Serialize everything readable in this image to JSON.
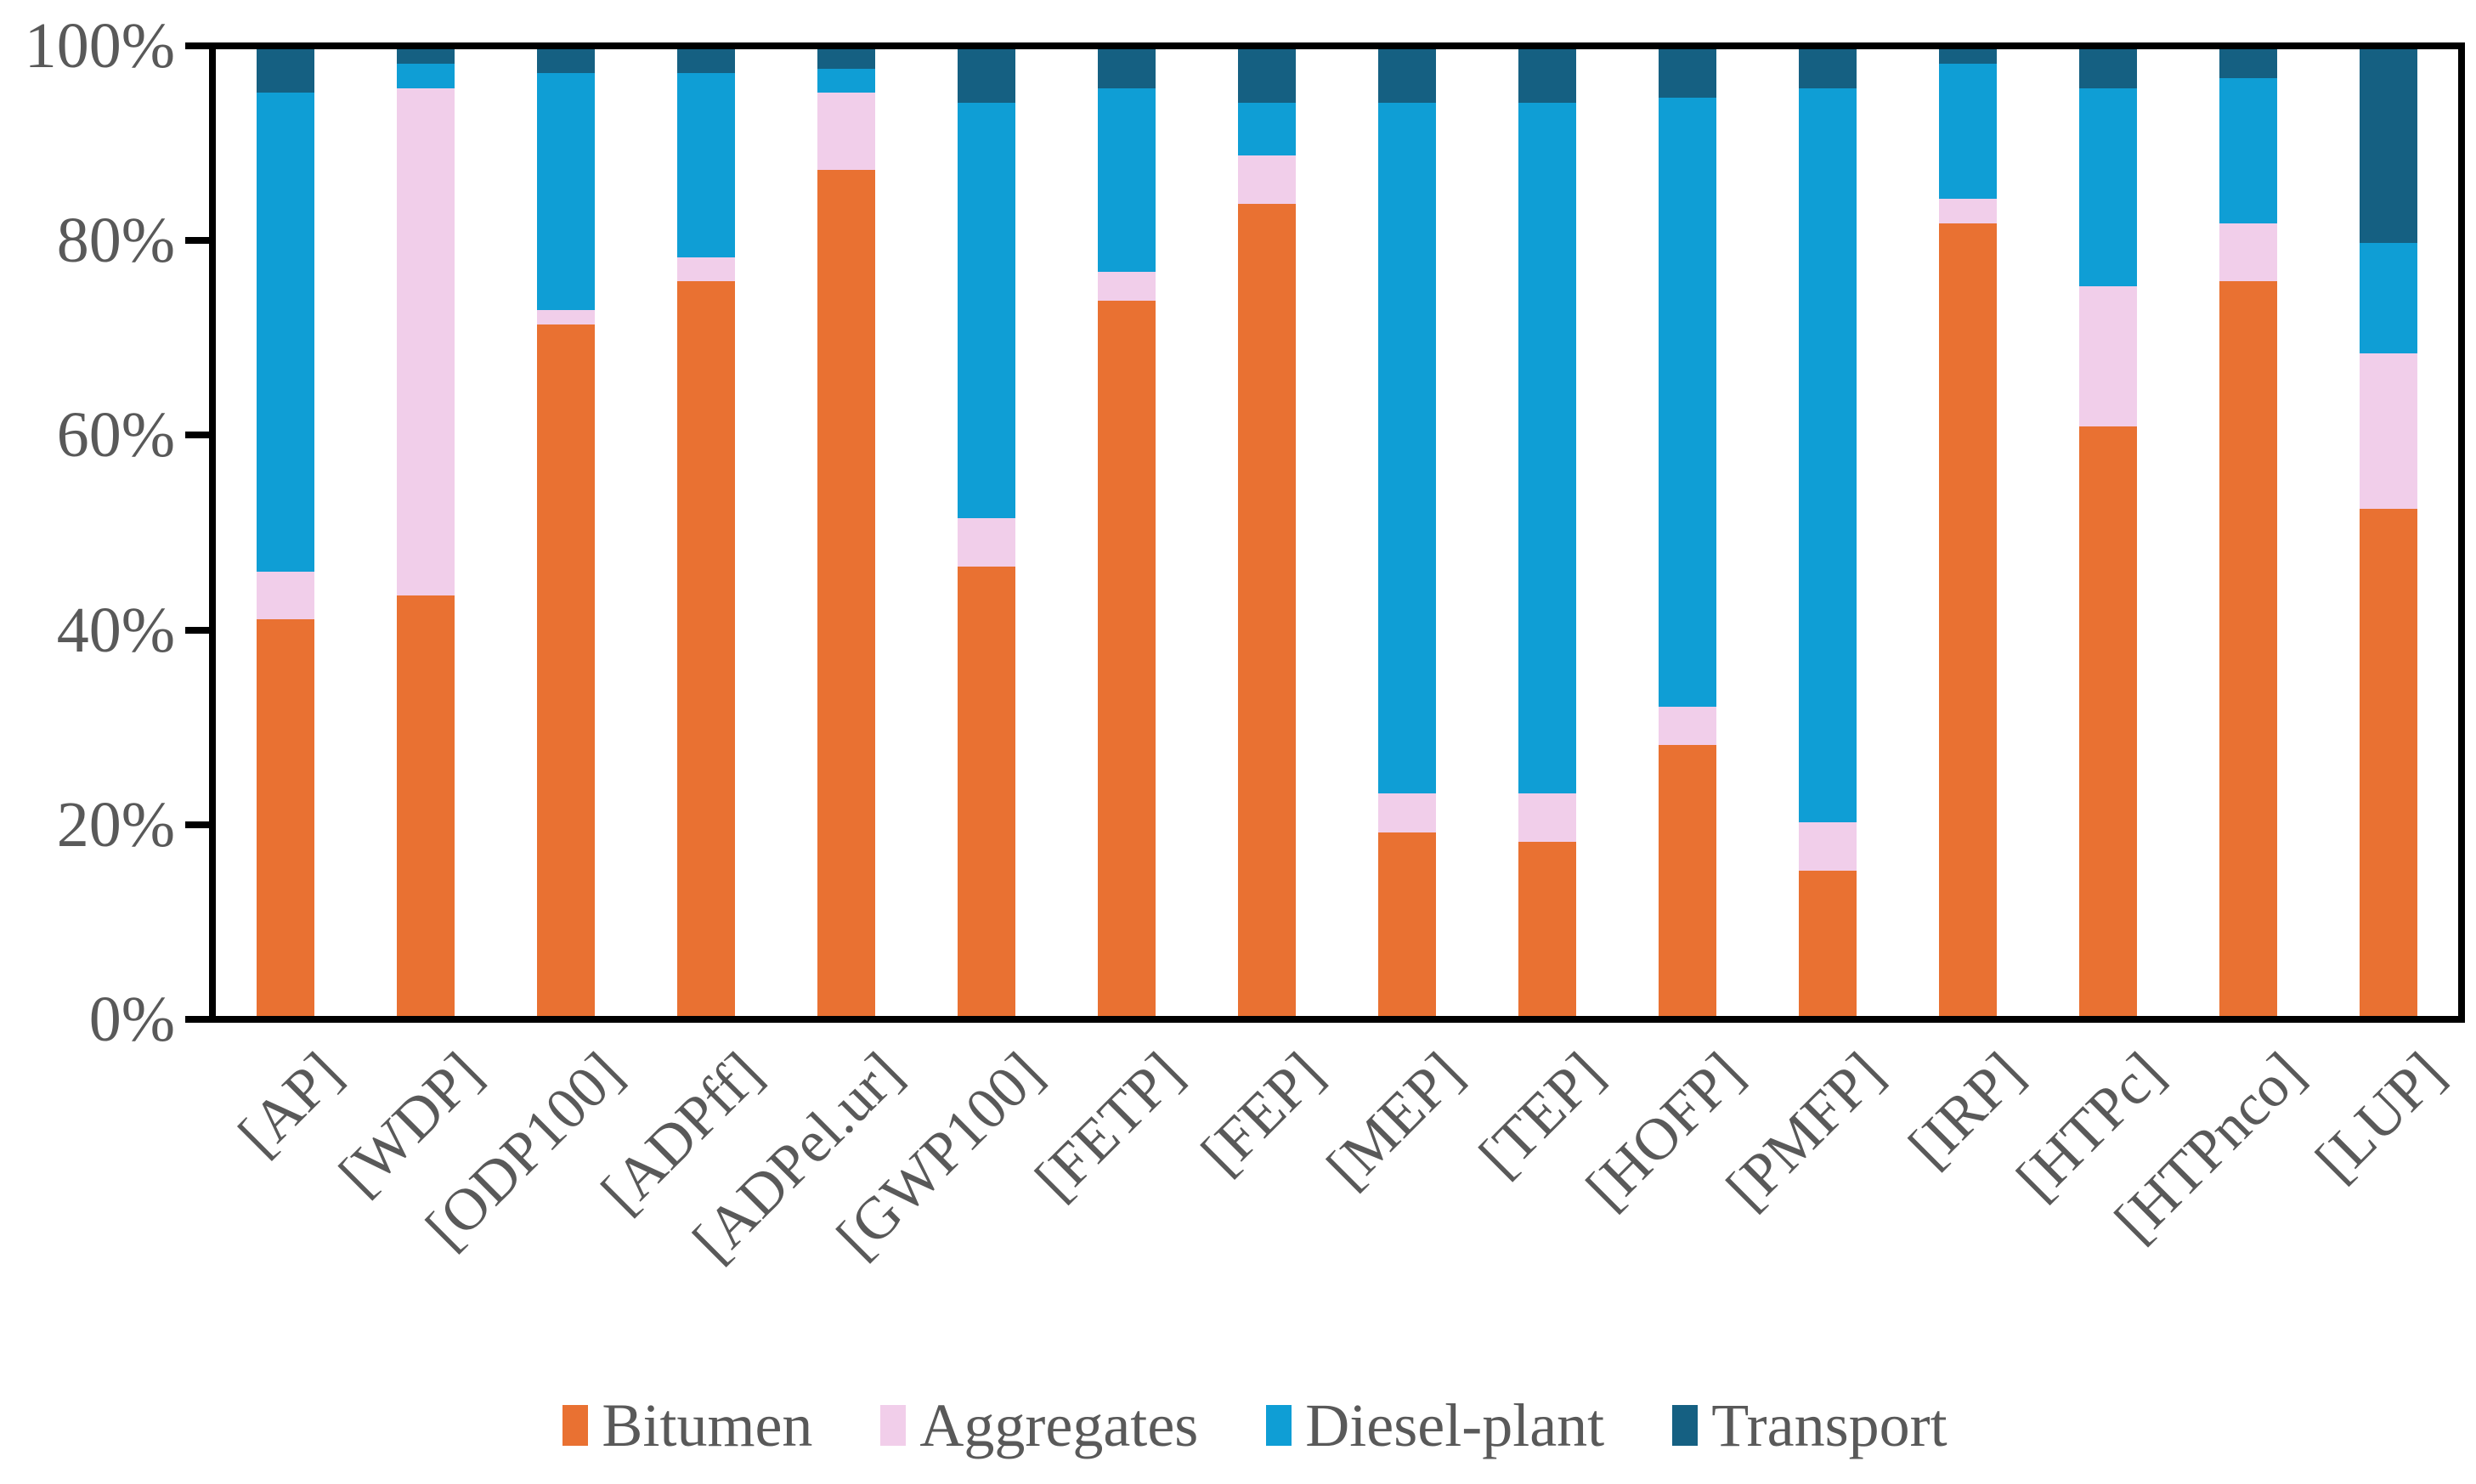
{
  "chart_data": {
    "type": "bar",
    "subtype": "100-percent-stacked-column",
    "title": "",
    "categories": [
      "[AP]",
      "[WDP]",
      "[ODP100]",
      "[ADPff]",
      "[ADPel.ur]",
      "[GWP100]",
      "[FETP]",
      "[FEP]",
      "[MEP]",
      "[TEP]",
      "[HOFP]",
      "[PMFP]",
      "[IRP]",
      "[HTPc]",
      "[HTPnco]",
      "[LUP]"
    ],
    "series": [
      {
        "name": "Bitumen",
        "color": "#E97132",
        "values": [
          41,
          43.5,
          71.5,
          76,
          87.5,
          46.5,
          74,
          84,
          19,
          18,
          28,
          15,
          82,
          61,
          76,
          52.5
        ]
      },
      {
        "name": "Aggregates",
        "color": "#F1CEEA",
        "values": [
          5,
          52.5,
          1.5,
          2.5,
          8,
          5,
          3,
          5,
          4,
          5,
          4,
          5,
          2.5,
          14.5,
          6,
          16
        ]
      },
      {
        "name": "Diesel-plant",
        "color": "#0F9ED5",
        "values": [
          49.5,
          2.5,
          24.5,
          19,
          2.5,
          43,
          19,
          5.5,
          71.5,
          71.5,
          63,
          76,
          14,
          20.5,
          15,
          11.5
        ]
      },
      {
        "name": "Transport",
        "color": "#156082",
        "values": [
          4.5,
          1.5,
          2.5,
          2.5,
          2,
          5.5,
          4,
          5.5,
          5.5,
          5.5,
          5,
          4,
          1.5,
          4,
          3,
          20
        ]
      }
    ],
    "y_axis": {
      "min": 0,
      "max": 100,
      "unit": "%",
      "tick_labels": [
        "0%",
        "20%",
        "40%",
        "60%",
        "80%",
        "100%"
      ],
      "gridlines": false
    },
    "x_axis": {
      "label_rotation_degrees": -45
    },
    "legend": {
      "position": "bottom",
      "entries": [
        "Bitumen",
        "Aggregates",
        "Diesel-plant",
        "Transport"
      ]
    }
  },
  "styles": {
    "axis_color": "#000000",
    "label_color": "#595959",
    "background_color": "#FFFFFF"
  }
}
